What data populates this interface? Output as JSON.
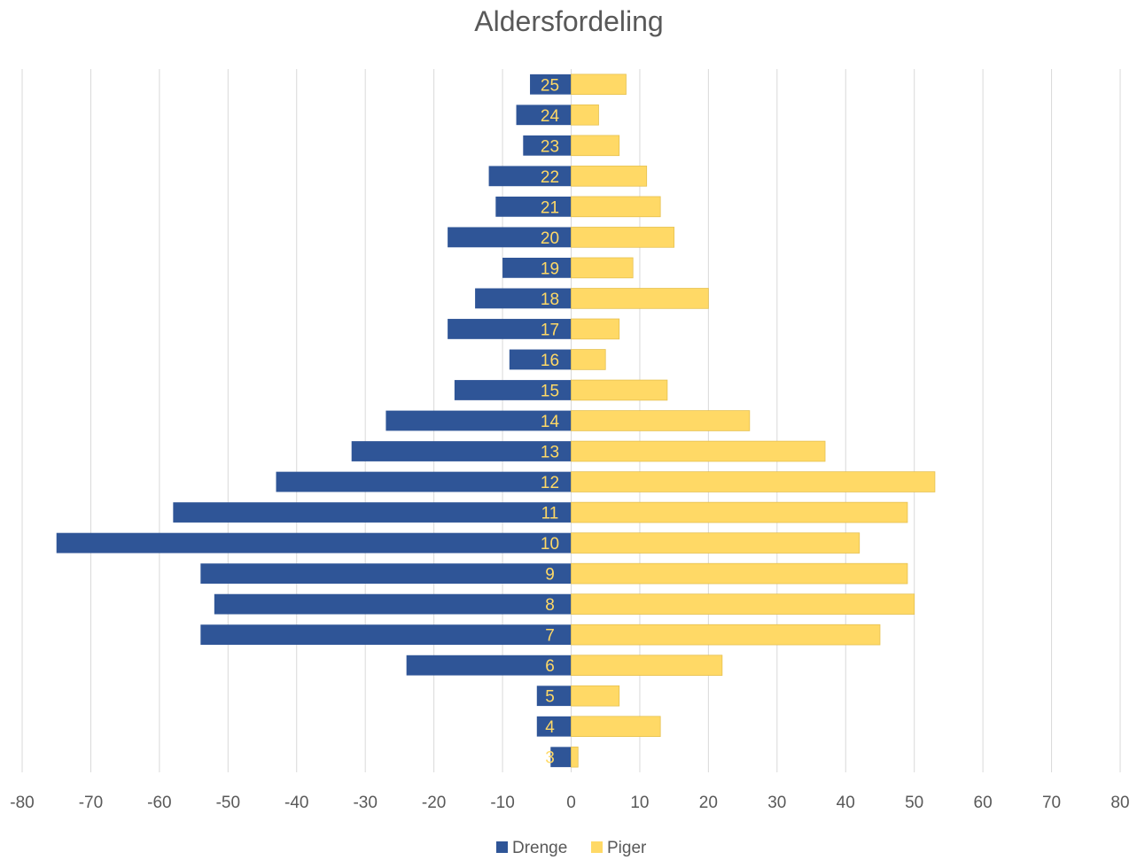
{
  "chart_data": {
    "type": "bar",
    "orientation": "horizontal",
    "title": "Aldersfordeling",
    "categories": [
      "3",
      "4",
      "5",
      "6",
      "7",
      "8",
      "9",
      "10",
      "11",
      "12",
      "13",
      "14",
      "15",
      "16",
      "17",
      "18",
      "19",
      "20",
      "21",
      "22",
      "23",
      "24",
      "25"
    ],
    "series": [
      {
        "name": "Drenge",
        "color": "#2F5597",
        "values": [
          -3,
          -5,
          -5,
          -24,
          -54,
          -52,
          -54,
          -75,
          -58,
          -43,
          -32,
          -27,
          -17,
          -9,
          -18,
          -14,
          -10,
          -18,
          -11,
          -12,
          -7,
          -8,
          -6
        ]
      },
      {
        "name": "Piger",
        "color": "#FFD966",
        "values": [
          1,
          13,
          7,
          22,
          45,
          50,
          49,
          42,
          49,
          53,
          37,
          26,
          14,
          5,
          7,
          20,
          9,
          15,
          13,
          11,
          7,
          4,
          8
        ]
      }
    ],
    "xlim": [
      -80,
      80
    ],
    "xticks": [
      "-80",
      "-70",
      "-60",
      "-50",
      "-40",
      "-30",
      "-20",
      "-10",
      "0",
      "10",
      "20",
      "30",
      "40",
      "50",
      "60",
      "70",
      "80"
    ],
    "grid": true,
    "legend_position": "bottom",
    "label_color": "#FFD966"
  }
}
